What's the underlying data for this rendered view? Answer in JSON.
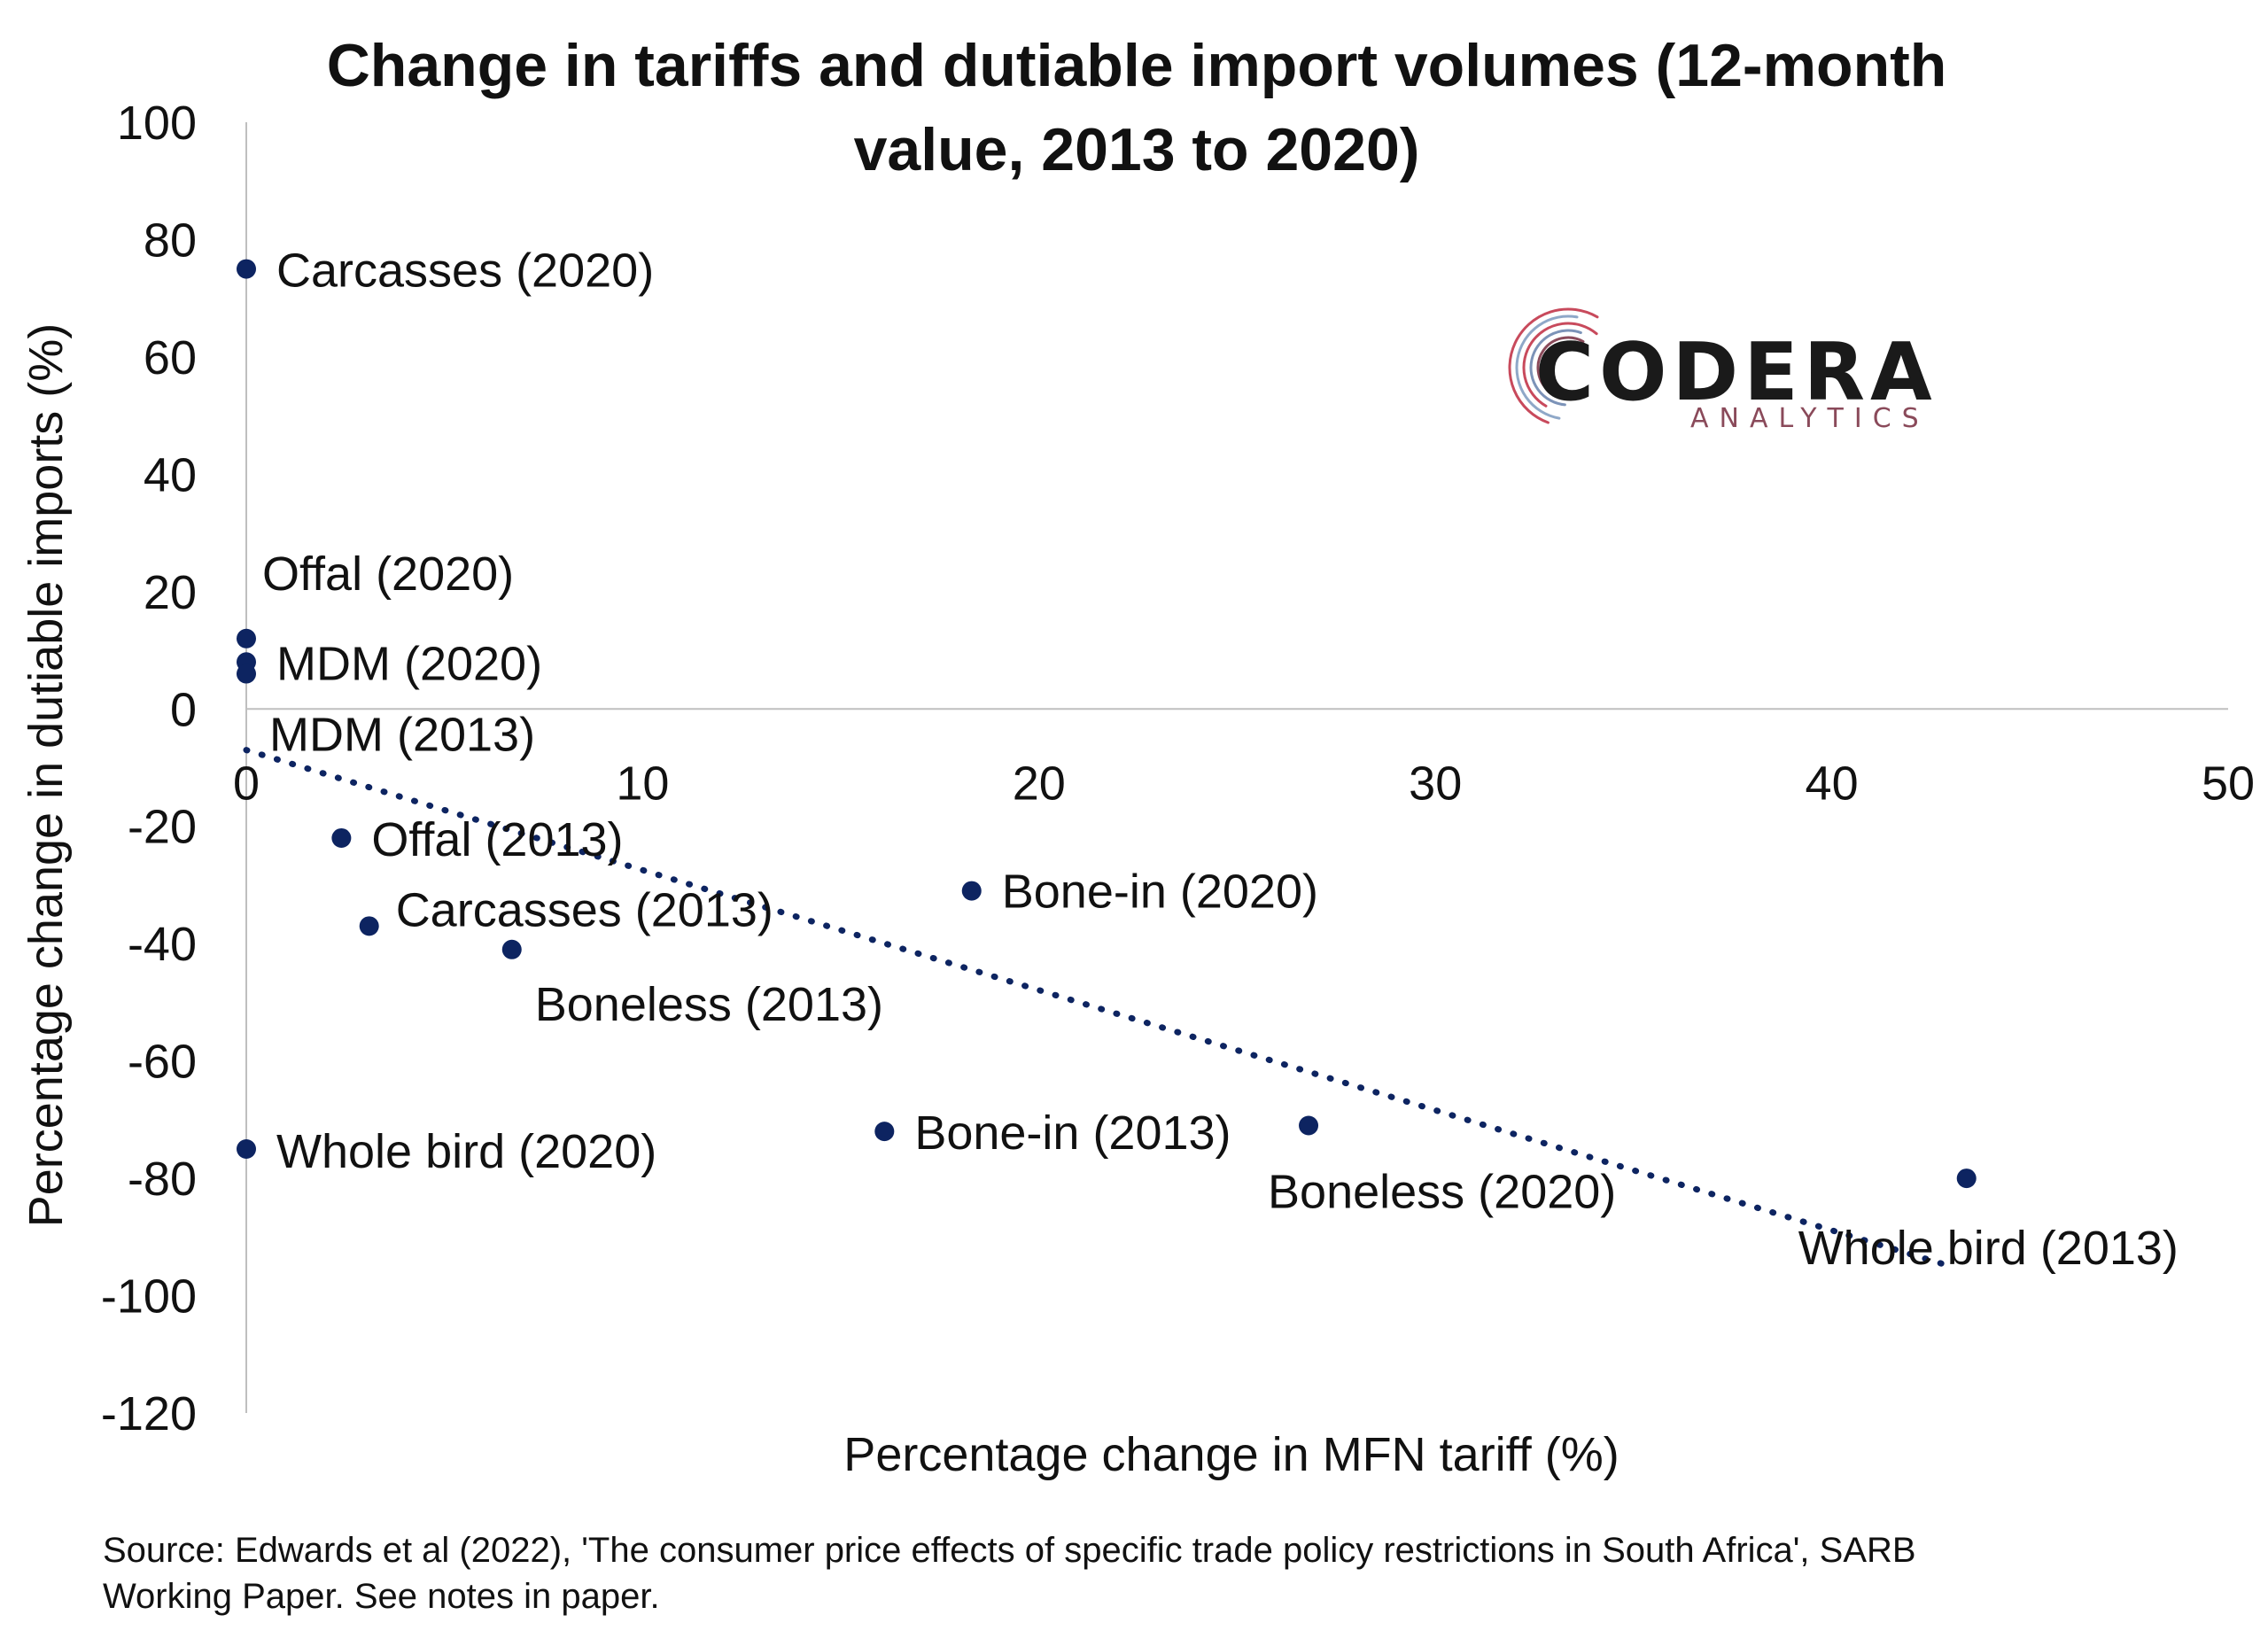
{
  "chart_data": {
    "type": "scatter",
    "title_lines": [
      "Change in tariffs and dutiable import volumes (12-month",
      "value, 2013 to 2020)"
    ],
    "xlabel": "Percentage change in MFN tariff (%)",
    "ylabel": "Percentage change in dutiable imports (%)",
    "xlim": [
      0,
      50
    ],
    "ylim": [
      -120,
      100
    ],
    "x_ticks": [
      0,
      10,
      20,
      30,
      40,
      50
    ],
    "y_ticks": [
      100,
      80,
      60,
      40,
      20,
      0,
      -20,
      -40,
      -60,
      -80,
      -100,
      -120
    ],
    "grid": false,
    "legend": "none",
    "point_color": "#0d2461",
    "trendline": {
      "style": "dotted",
      "x": [
        0,
        43
      ],
      "y": [
        -7,
        -95
      ]
    },
    "points": [
      {
        "label": "Carcasses (2020)",
        "x": 0,
        "y": 75
      },
      {
        "label": "Offal (2020)",
        "x": 0,
        "y": 12
      },
      {
        "label": "MDM (2020)",
        "x": 0,
        "y": 8
      },
      {
        "label": "MDM (2013)",
        "x": 0,
        "y": 6
      },
      {
        "label": "Offal (2013)",
        "x": 2.4,
        "y": -22
      },
      {
        "label": "Carcasses (2013)",
        "x": 3.1,
        "y": -37
      },
      {
        "label": "Boneless (2013)",
        "x": 6.7,
        "y": -41
      },
      {
        "label": "Bone-in (2020)",
        "x": 18.3,
        "y": -31
      },
      {
        "label": "Whole bird (2020)",
        "x": 0,
        "y": -75
      },
      {
        "label": "Bone-in (2013)",
        "x": 16.1,
        "y": -72
      },
      {
        "label": "Boneless (2020)",
        "x": 26.8,
        "y": -71
      },
      {
        "label": "Whole bird (2013)",
        "x": 43.4,
        "y": -80
      }
    ]
  },
  "logo": {
    "name": "CODERA",
    "sub": "ANALYTICS",
    "dark_color": "#1a1a1a",
    "accent_color": "#8a4a5a"
  },
  "source_lines": [
    "Source: Edwards et al (2022), 'The consumer price effects of specific trade policy restrictions in South Africa', SARB",
    "Working Paper. See notes in paper."
  ]
}
